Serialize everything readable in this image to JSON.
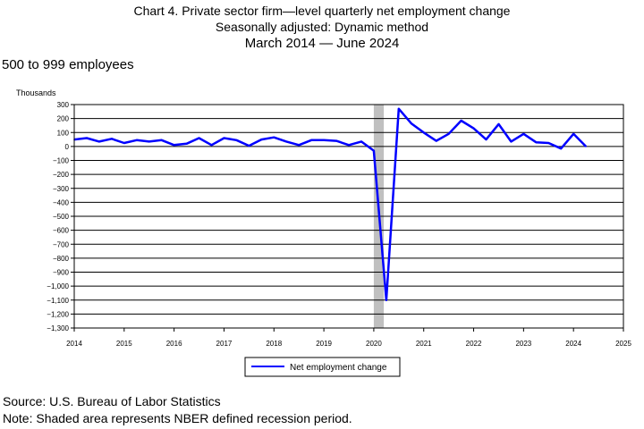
{
  "titles": {
    "line1": "Chart 4. Private sector firm—level quarterly net employment change",
    "line2": "Seasonally adjusted: Dynamic method",
    "line3": "March 2014  — June 2024",
    "subtitle": "500 to 999 employees"
  },
  "footer": {
    "source": "Source: U.S. Bureau of Labor Statistics",
    "note": "Note: Shaded area represents NBER defined recession period."
  },
  "colors": {
    "series": "#0000ff",
    "recession": "#c0c0c0",
    "grid": "#000000"
  },
  "chart_data": {
    "type": "line",
    "title": "Chart 4. Private sector firm—level quarterly net employment change",
    "ylabel": "Thousands",
    "xlabel": "",
    "ylim": [
      -1300,
      300
    ],
    "xlim": [
      2014,
      2025
    ],
    "y_ticks": [
      300,
      200,
      100,
      0,
      -100,
      -200,
      -300,
      -400,
      -500,
      -600,
      -700,
      -800,
      -900,
      -1000,
      -1100,
      -1200,
      -1300
    ],
    "y_tick_labels": [
      "300",
      "200",
      "100",
      "0",
      "−100",
      "−200",
      "−300",
      "−400",
      "−500",
      "−600",
      "−700",
      "−800",
      "−900",
      "−1,000",
      "−1,100",
      "−1,200",
      "−1,300"
    ],
    "x_ticks": [
      2014,
      2015,
      2016,
      2017,
      2018,
      2019,
      2020,
      2021,
      2022,
      2023,
      2024,
      2025
    ],
    "x_tick_labels": [
      "2014",
      "2015",
      "2016",
      "2017",
      "2018",
      "2019",
      "2020",
      "2021",
      "2022",
      "2023",
      "2024",
      "2025"
    ],
    "grid": true,
    "legend_position": "bottom-center",
    "recession": [
      {
        "start": 2020.0,
        "end": 2020.2
      }
    ],
    "series": [
      {
        "name": "Net employment change",
        "x": [
          2014.0,
          2014.25,
          2014.5,
          2014.75,
          2015.0,
          2015.25,
          2015.5,
          2015.75,
          2016.0,
          2016.25,
          2016.5,
          2016.75,
          2017.0,
          2017.25,
          2017.5,
          2017.75,
          2018.0,
          2018.25,
          2018.5,
          2018.75,
          2019.0,
          2019.25,
          2019.5,
          2019.75,
          2020.0,
          2020.25,
          2020.5,
          2020.75,
          2021.0,
          2021.25,
          2021.5,
          2021.75,
          2022.0,
          2022.25,
          2022.5,
          2022.75,
          2023.0,
          2023.25,
          2023.5,
          2023.75,
          2024.0,
          2024.25
        ],
        "values": [
          50,
          60,
          35,
          55,
          25,
          45,
          35,
          45,
          10,
          20,
          60,
          10,
          60,
          45,
          5,
          50,
          65,
          35,
          10,
          45,
          45,
          40,
          10,
          35,
          -30,
          -1100,
          270,
          165,
          100,
          40,
          90,
          185,
          130,
          50,
          160,
          35,
          90,
          30,
          25,
          -15,
          90,
          0
        ]
      }
    ]
  }
}
